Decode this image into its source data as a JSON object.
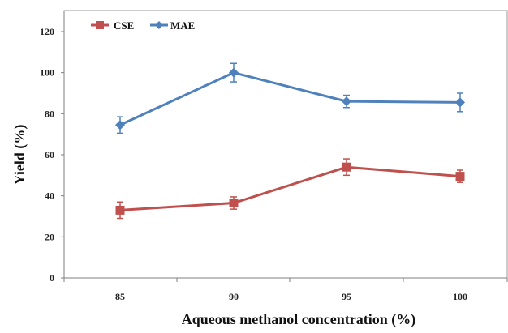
{
  "chart_data": {
    "type": "line",
    "categories": [
      "85",
      "90",
      "95",
      "100"
    ],
    "xlabel": "Aqueous methanol concentration (%)",
    "ylabel": "Yield (%)",
    "ylim": [
      0,
      120
    ],
    "yticks": [
      "0",
      "20",
      "40",
      "60",
      "80",
      "100",
      "120"
    ],
    "grid": false,
    "legend_position": "top-left",
    "series": [
      {
        "name": "CSE",
        "color": "#c0504d",
        "marker": "square",
        "values": [
          33,
          36.5,
          54,
          49.5
        ],
        "errors": [
          4,
          3,
          4,
          3
        ]
      },
      {
        "name": "MAE",
        "color": "#4f81bd",
        "marker": "diamond",
        "values": [
          74.5,
          100,
          86,
          85.5
        ],
        "errors": [
          4,
          4.5,
          3,
          4.5
        ]
      }
    ]
  }
}
